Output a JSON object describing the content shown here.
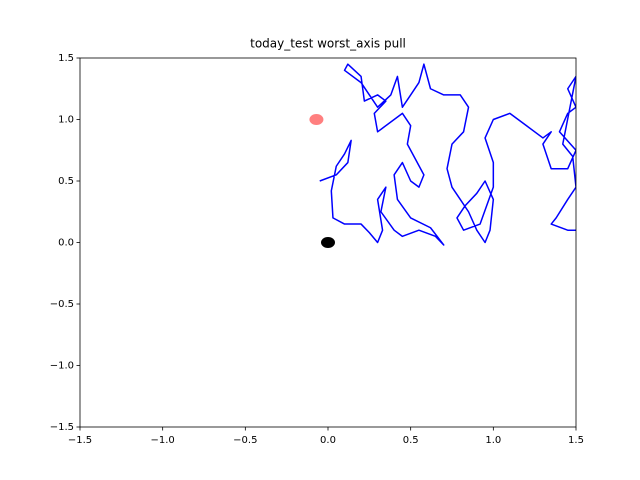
{
  "chart_data": {
    "type": "line",
    "title": "today_test worst_axis pull",
    "xlim": [
      -1.5,
      1.5
    ],
    "ylim": [
      -1.5,
      1.5
    ],
    "xticks": [
      {
        "value": -1.5,
        "label": "−1.5"
      },
      {
        "value": -1,
        "label": "−1.0"
      },
      {
        "value": -0.5,
        "label": "−0.5"
      },
      {
        "value": 0,
        "label": "0.0"
      },
      0.5,
      {
        "value": 1,
        "label": "1.0"
      },
      1.5
    ],
    "yticks": [
      {
        "value": -1.5,
        "label": "−1.5"
      },
      {
        "value": -1,
        "label": "−1.0"
      },
      {
        "value": -0.5,
        "label": "−0.5"
      },
      {
        "value": 0,
        "label": "0.0"
      },
      0.5,
      {
        "value": 1,
        "label": "1.0"
      },
      1.5
    ],
    "series": [
      {
        "color": "#0000ff",
        "marker": "none",
        "x": [
          -0.05,
          0.05,
          0.12,
          0.14,
          0.1,
          0.05,
          0.02,
          0.03,
          0.1,
          0.2,
          0.25,
          0.3,
          0.33,
          0.3,
          0.35,
          0.32,
          0.4,
          0.45,
          0.55,
          0.65,
          0.7,
          0.62,
          0.5,
          0.42,
          0.4,
          0.45,
          0.5,
          0.55,
          0.58,
          0.48,
          0.5,
          0.45,
          0.3,
          0.28,
          0.35,
          0.3,
          0.22,
          0.2,
          0.12,
          0.1,
          0.2,
          0.3,
          0.38,
          0.42,
          0.45,
          0.5,
          0.55,
          0.58,
          0.62,
          0.7,
          0.8,
          0.85,
          0.82,
          0.75,
          0.72,
          0.75,
          0.8,
          0.85,
          0.9,
          0.95,
          0.98,
          1.0,
          0.95,
          0.9,
          0.83,
          0.78,
          0.82,
          0.92,
          1.0,
          1.0,
          0.95,
          1.0,
          1.1,
          1.2,
          1.3,
          1.35,
          1.3,
          1.35,
          1.45,
          1.5,
          1.4,
          1.45,
          1.5,
          1.45,
          1.5,
          1.42,
          1.48,
          1.5,
          1.45,
          1.38,
          1.35,
          1.45,
          1.5
        ],
        "values": [
          0.5,
          0.55,
          0.65,
          0.83,
          0.72,
          0.62,
          0.42,
          0.2,
          0.15,
          0.15,
          0.08,
          0.0,
          0.1,
          0.35,
          0.45,
          0.25,
          0.1,
          0.05,
          0.1,
          0.05,
          -0.02,
          0.12,
          0.2,
          0.35,
          0.55,
          0.65,
          0.5,
          0.45,
          0.55,
          0.8,
          0.95,
          1.05,
          0.9,
          1.05,
          1.15,
          1.2,
          1.15,
          1.35,
          1.45,
          1.4,
          1.3,
          1.1,
          1.2,
          1.35,
          1.1,
          1.2,
          1.3,
          1.45,
          1.25,
          1.2,
          1.2,
          1.1,
          0.9,
          0.8,
          0.6,
          0.45,
          0.35,
          0.25,
          0.1,
          0.0,
          0.1,
          0.35,
          0.5,
          0.4,
          0.3,
          0.2,
          0.1,
          0.15,
          0.45,
          0.65,
          0.85,
          1.0,
          1.05,
          0.95,
          0.85,
          0.9,
          0.8,
          0.6,
          0.6,
          0.75,
          0.9,
          1.05,
          1.1,
          1.25,
          1.35,
          0.8,
          0.7,
          0.45,
          0.35,
          0.2,
          0.15,
          0.1,
          0.1
        ]
      },
      {
        "color": "#ff0000",
        "opacity": 0.5,
        "marker": "ellipse",
        "x": [
          -0.07
        ],
        "values": [
          1.0
        ]
      },
      {
        "color": "#000000",
        "opacity": 1,
        "marker": "ellipse",
        "x": [
          0.0
        ],
        "values": [
          0.0
        ]
      }
    ]
  }
}
